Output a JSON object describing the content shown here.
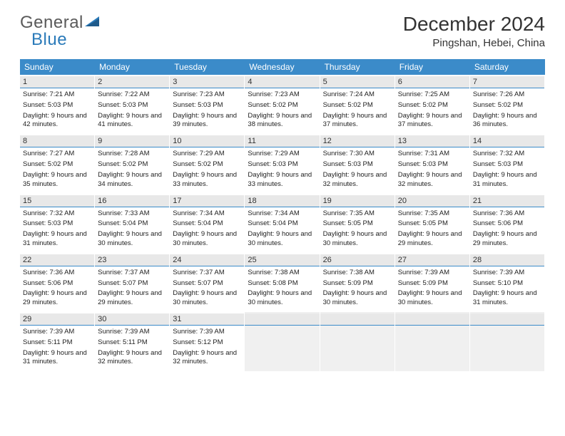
{
  "logo": {
    "text1": "General",
    "text2": "Blue"
  },
  "title": "December 2024",
  "location": "Pingshan, Hebei, China",
  "header_bg": "#3b8bc9",
  "date_row_bg": "#e8e8e8",
  "date_border": "#3b8bc9",
  "dayNames": [
    "Sunday",
    "Monday",
    "Tuesday",
    "Wednesday",
    "Thursday",
    "Friday",
    "Saturday"
  ],
  "weeks": [
    [
      {
        "d": "1",
        "sr": "7:21 AM",
        "ss": "5:03 PM",
        "dl": "9 hours and 42 minutes."
      },
      {
        "d": "2",
        "sr": "7:22 AM",
        "ss": "5:03 PM",
        "dl": "9 hours and 41 minutes."
      },
      {
        "d": "3",
        "sr": "7:23 AM",
        "ss": "5:03 PM",
        "dl": "9 hours and 39 minutes."
      },
      {
        "d": "4",
        "sr": "7:23 AM",
        "ss": "5:02 PM",
        "dl": "9 hours and 38 minutes."
      },
      {
        "d": "5",
        "sr": "7:24 AM",
        "ss": "5:02 PM",
        "dl": "9 hours and 37 minutes."
      },
      {
        "d": "6",
        "sr": "7:25 AM",
        "ss": "5:02 PM",
        "dl": "9 hours and 37 minutes."
      },
      {
        "d": "7",
        "sr": "7:26 AM",
        "ss": "5:02 PM",
        "dl": "9 hours and 36 minutes."
      }
    ],
    [
      {
        "d": "8",
        "sr": "7:27 AM",
        "ss": "5:02 PM",
        "dl": "9 hours and 35 minutes."
      },
      {
        "d": "9",
        "sr": "7:28 AM",
        "ss": "5:02 PM",
        "dl": "9 hours and 34 minutes."
      },
      {
        "d": "10",
        "sr": "7:29 AM",
        "ss": "5:02 PM",
        "dl": "9 hours and 33 minutes."
      },
      {
        "d": "11",
        "sr": "7:29 AM",
        "ss": "5:03 PM",
        "dl": "9 hours and 33 minutes."
      },
      {
        "d": "12",
        "sr": "7:30 AM",
        "ss": "5:03 PM",
        "dl": "9 hours and 32 minutes."
      },
      {
        "d": "13",
        "sr": "7:31 AM",
        "ss": "5:03 PM",
        "dl": "9 hours and 32 minutes."
      },
      {
        "d": "14",
        "sr": "7:32 AM",
        "ss": "5:03 PM",
        "dl": "9 hours and 31 minutes."
      }
    ],
    [
      {
        "d": "15",
        "sr": "7:32 AM",
        "ss": "5:03 PM",
        "dl": "9 hours and 31 minutes."
      },
      {
        "d": "16",
        "sr": "7:33 AM",
        "ss": "5:04 PM",
        "dl": "9 hours and 30 minutes."
      },
      {
        "d": "17",
        "sr": "7:34 AM",
        "ss": "5:04 PM",
        "dl": "9 hours and 30 minutes."
      },
      {
        "d": "18",
        "sr": "7:34 AM",
        "ss": "5:04 PM",
        "dl": "9 hours and 30 minutes."
      },
      {
        "d": "19",
        "sr": "7:35 AM",
        "ss": "5:05 PM",
        "dl": "9 hours and 30 minutes."
      },
      {
        "d": "20",
        "sr": "7:35 AM",
        "ss": "5:05 PM",
        "dl": "9 hours and 29 minutes."
      },
      {
        "d": "21",
        "sr": "7:36 AM",
        "ss": "5:06 PM",
        "dl": "9 hours and 29 minutes."
      }
    ],
    [
      {
        "d": "22",
        "sr": "7:36 AM",
        "ss": "5:06 PM",
        "dl": "9 hours and 29 minutes."
      },
      {
        "d": "23",
        "sr": "7:37 AM",
        "ss": "5:07 PM",
        "dl": "9 hours and 29 minutes."
      },
      {
        "d": "24",
        "sr": "7:37 AM",
        "ss": "5:07 PM",
        "dl": "9 hours and 30 minutes."
      },
      {
        "d": "25",
        "sr": "7:38 AM",
        "ss": "5:08 PM",
        "dl": "9 hours and 30 minutes."
      },
      {
        "d": "26",
        "sr": "7:38 AM",
        "ss": "5:09 PM",
        "dl": "9 hours and 30 minutes."
      },
      {
        "d": "27",
        "sr": "7:39 AM",
        "ss": "5:09 PM",
        "dl": "9 hours and 30 minutes."
      },
      {
        "d": "28",
        "sr": "7:39 AM",
        "ss": "5:10 PM",
        "dl": "9 hours and 31 minutes."
      }
    ],
    [
      {
        "d": "29",
        "sr": "7:39 AM",
        "ss": "5:11 PM",
        "dl": "9 hours and 31 minutes."
      },
      {
        "d": "30",
        "sr": "7:39 AM",
        "ss": "5:11 PM",
        "dl": "9 hours and 32 minutes."
      },
      {
        "d": "31",
        "sr": "7:39 AM",
        "ss": "5:12 PM",
        "dl": "9 hours and 32 minutes."
      },
      null,
      null,
      null,
      null
    ]
  ],
  "labels": {
    "sunrise": "Sunrise: ",
    "sunset": "Sunset: ",
    "daylight": "Daylight: "
  }
}
